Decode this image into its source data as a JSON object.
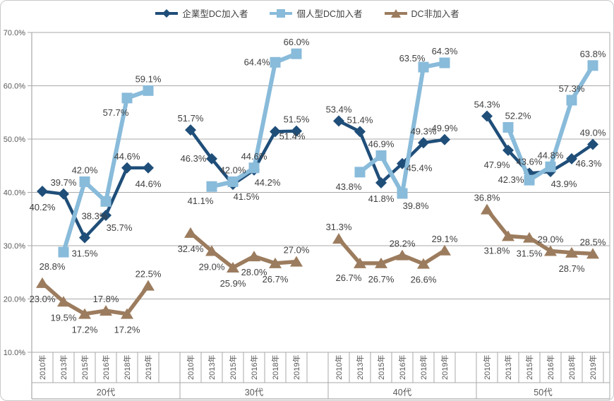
{
  "chart_data": {
    "type": "line",
    "title": "",
    "legend_position": "top",
    "grid": true,
    "ylim": [
      10,
      70
    ],
    "ytick_step": 10,
    "yticks": [
      "70.0%",
      "60.0%",
      "50.0%",
      "40.0%",
      "30.0%",
      "20.0%",
      "10.0%"
    ],
    "groups": [
      "20代",
      "30代",
      "40代",
      "50代"
    ],
    "years": [
      "2010年",
      "2013年",
      "2015年",
      "2016年",
      "2018年",
      "2019年"
    ],
    "colors": {
      "corporate_dc": "#1f4e79",
      "individual_dc": "#89bbda",
      "non_dc": "#9c7c5e",
      "gridline": "#a9a9a9",
      "axis_text": "#595959",
      "data_label": "#404040"
    },
    "series": [
      {
        "name": "企業型DC加入者",
        "key": "corporate-dc",
        "color": "#1f4e79",
        "marker": "diamond",
        "line_width": 4.5,
        "values": [
          [
            40.2,
            39.7,
            31.5,
            35.7,
            44.6,
            44.6
          ],
          [
            51.7,
            46.3,
            41.5,
            44.2,
            51.4,
            51.5
          ],
          [
            53.4,
            51.4,
            41.8,
            45.4,
            49.3,
            49.9
          ],
          [
            54.3,
            47.9,
            43.6,
            43.9,
            46.3,
            49.0
          ]
        ],
        "label_pos": [
          [
            "b",
            "a",
            "b",
            "br",
            "a",
            "b"
          ],
          [
            "a",
            "l",
            "br",
            "br",
            "r",
            "a"
          ],
          [
            "a",
            "a",
            "b",
            "r",
            "a",
            "a"
          ],
          [
            "a",
            "bl",
            "a",
            "br",
            "r",
            "a"
          ]
        ]
      },
      {
        "name": "個人型DC加入者",
        "key": "individual-dc",
        "color": "#89bbda",
        "marker": "square",
        "line_width": 6,
        "values": [
          [
            null,
            28.8,
            42.0,
            38.3,
            57.7,
            59.1
          ],
          [
            null,
            41.1,
            42.0,
            44.6,
            64.4,
            66.0
          ],
          [
            null,
            43.8,
            46.9,
            39.8,
            63.5,
            64.3
          ],
          [
            null,
            52.2,
            42.3,
            44.8,
            57.3,
            63.8
          ]
        ],
        "label_pos": [
          [
            null,
            "bl",
            "a",
            "bl",
            "bl",
            "a"
          ],
          [
            null,
            "bl",
            "a",
            "a",
            "l",
            "a"
          ],
          [
            null,
            "bl",
            "a",
            "br",
            "al",
            "a"
          ],
          [
            null,
            "ar",
            "l",
            "a",
            "a",
            "a"
          ]
        ]
      },
      {
        "name": "DC非加入者",
        "key": "non-dc",
        "color": "#9c7c5e",
        "marker": "triangle",
        "line_width": 5.5,
        "values": [
          [
            23.0,
            19.5,
            17.2,
            17.8,
            17.2,
            22.5
          ],
          [
            32.4,
            29.0,
            25.9,
            28.0,
            26.7,
            27.0
          ],
          [
            31.3,
            26.7,
            26.7,
            28.2,
            26.6,
            29.1
          ],
          [
            36.8,
            31.8,
            31.5,
            29.0,
            28.7,
            28.5
          ]
        ],
        "label_pos": [
          [
            "b",
            "b",
            "b",
            "a",
            "b",
            "a"
          ],
          [
            "b",
            "b",
            "b",
            "b",
            "b",
            "a"
          ],
          [
            "a",
            "bl",
            "b",
            "a",
            "b",
            "a"
          ],
          [
            "a",
            "bl",
            "b",
            "a",
            "b",
            "a"
          ]
        ]
      }
    ]
  }
}
